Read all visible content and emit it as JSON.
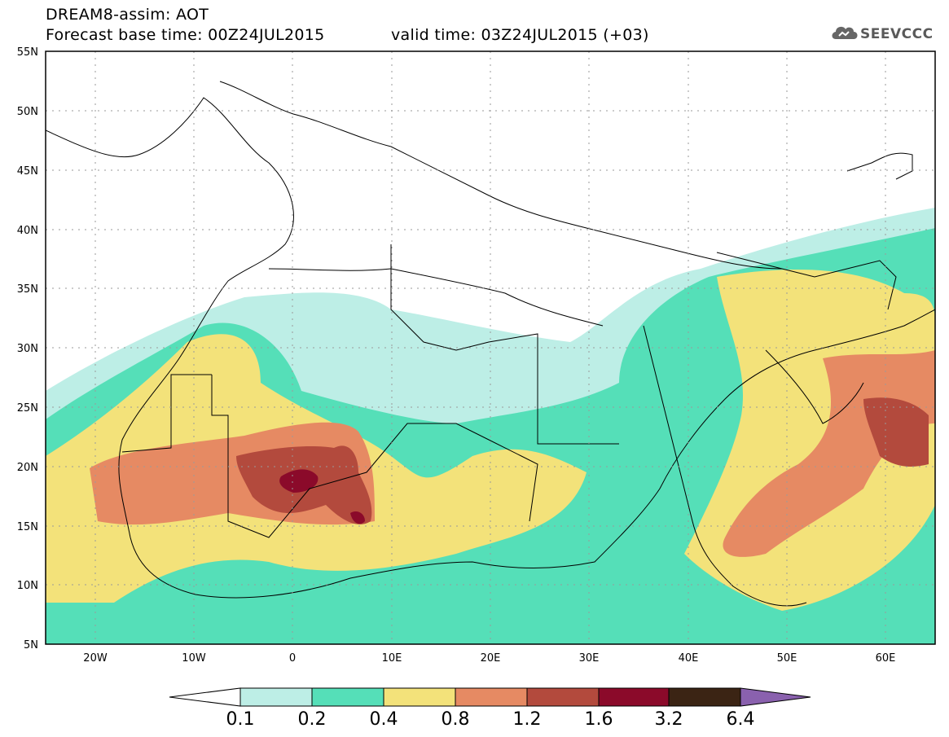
{
  "header": {
    "model": "DREAM8-assim: AOT",
    "base_time": "Forecast base time: 00Z24JUL2015",
    "valid_time": "valid time: 03Z24JUL2015 (+03)"
  },
  "logo": {
    "text": "SEEVCCC",
    "icon": "cloud-icon"
  },
  "map": {
    "lon_range": [
      -25,
      65
    ],
    "lat_range": [
      5,
      55
    ],
    "lat_ticks": [
      "55N",
      "50N",
      "45N",
      "40N",
      "35N",
      "30N",
      "25N",
      "20N",
      "15N",
      "10N",
      "5N"
    ],
    "lon_ticks": [
      "20W",
      "10W",
      "0",
      "10E",
      "20E",
      "30E",
      "40E",
      "50E",
      "60E"
    ]
  },
  "colorbar": {
    "labels": [
      "0.1",
      "0.2",
      "0.4",
      "0.8",
      "1.2",
      "1.6",
      "3.2",
      "6.4"
    ],
    "colors": [
      "#ffffff",
      "#bdeee6",
      "#55dfb8",
      "#f3e27a",
      "#e68a63",
      "#b34a3d",
      "#8b0a2a",
      "#3b2414",
      "#8a61ae"
    ]
  }
}
